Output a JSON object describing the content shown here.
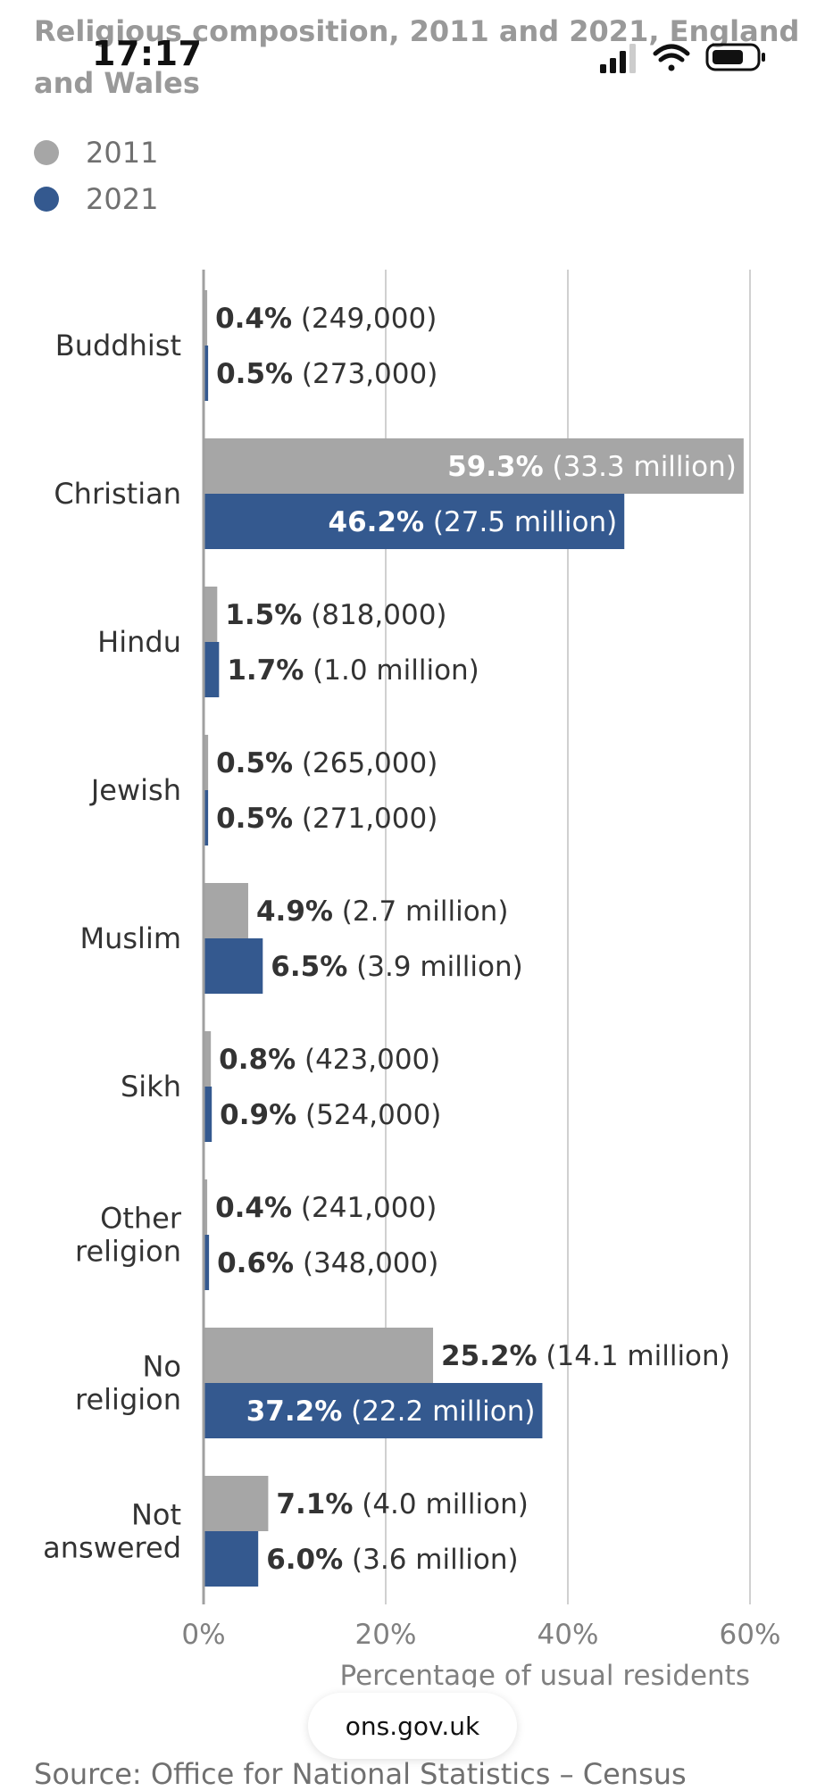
{
  "status": {
    "time": "17:17"
  },
  "colors": {
    "y2011": "#a6a6a6",
    "y2021": "#34598f"
  },
  "chart_data": {
    "type": "bar",
    "orientation": "horizontal",
    "title": "Religious composition, 2011 and 2021, England and Wales",
    "xlabel": "Percentage of usual residents",
    "xlim": [
      0,
      60
    ],
    "xticks": [
      "0%",
      "20%",
      "40%",
      "60%"
    ],
    "grid": true,
    "legend_position": "top-left",
    "categories": [
      [
        "Buddhist"
      ],
      [
        "Christian"
      ],
      [
        "Hindu"
      ],
      [
        "Jewish"
      ],
      [
        "Muslim"
      ],
      [
        "Sikh"
      ],
      [
        "Other",
        "religion"
      ],
      [
        "No",
        "religion"
      ],
      [
        "Not",
        "answered"
      ]
    ],
    "series": [
      {
        "name": "2011",
        "values": [
          0.4,
          59.3,
          1.5,
          0.5,
          4.9,
          0.8,
          0.4,
          25.2,
          7.1
        ],
        "labels": [
          "0.4%",
          "59.3%",
          "1.5%",
          "0.5%",
          "4.9%",
          "0.8%",
          "0.4%",
          "25.2%",
          "7.1%"
        ],
        "counts": [
          "(249,000)",
          "(33.3 million)",
          "(818,000)",
          "(265,000)",
          "(2.7 million)",
          "(423,000)",
          "(241,000)",
          "(14.1 million)",
          "(4.0 million)"
        ]
      },
      {
        "name": "2021",
        "values": [
          0.5,
          46.2,
          1.7,
          0.5,
          6.5,
          0.9,
          0.6,
          37.2,
          6.0
        ],
        "labels": [
          "0.5%",
          "46.2%",
          "1.7%",
          "0.5%",
          "6.5%",
          "0.9%",
          "0.6%",
          "37.2%",
          "6.0%"
        ],
        "counts": [
          "(273,000)",
          "(27.5 million)",
          "(1.0 million)",
          "(271,000)",
          "(3.9 million)",
          "(524,000)",
          "(348,000)",
          "(22.2 million)",
          "(3.6 million)"
        ]
      }
    ]
  },
  "footer": {
    "url": "ons.gov.uk",
    "source": "Source: Office for National Statistics – Census"
  }
}
